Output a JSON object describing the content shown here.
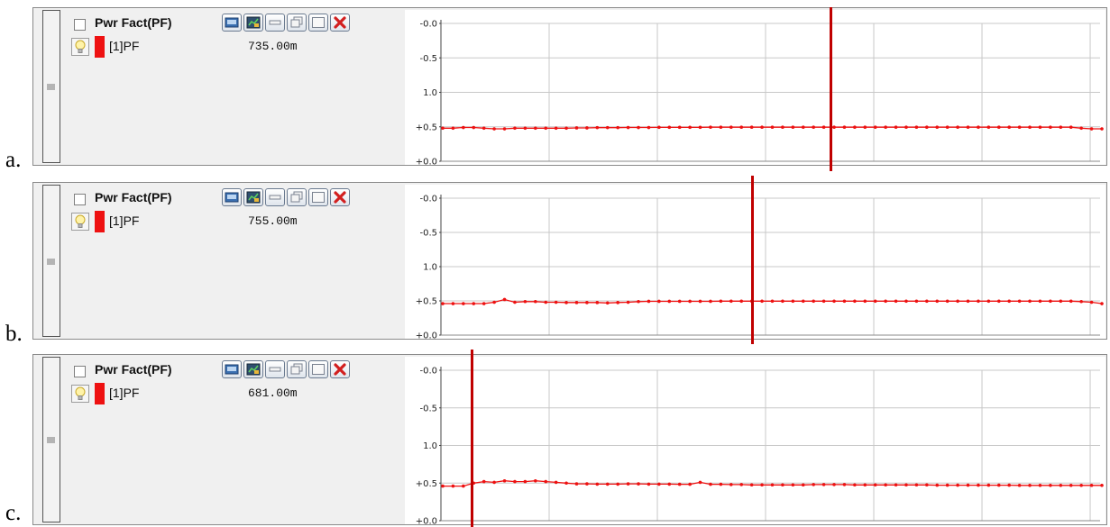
{
  "panels": [
    {
      "label": "a.",
      "title": "Pwr Fact(PF)",
      "series_name": "[1]PF",
      "value": "735.00m"
    },
    {
      "label": "b.",
      "title": "Pwr Fact(PF)",
      "series_name": "[1]PF",
      "value": "755.00m"
    },
    {
      "label": "c.",
      "title": "Pwr Fact(PF)",
      "series_name": "[1]PF",
      "value": "681.00m"
    }
  ],
  "icons": {
    "toolbar": [
      "screen-icon",
      "chart-edit-icon",
      "minimize-icon",
      "restore-icon",
      "maximize-icon",
      "close-icon"
    ],
    "row": [
      "lightbulb-icon",
      "drag-grip-icon"
    ]
  },
  "colors": {
    "series": "#ee1111",
    "cursor": "#c00000",
    "close": "#d21f1f"
  },
  "chart_data": [
    {
      "type": "line",
      "yticks": [
        "-0.0",
        "-0.5",
        "1.0",
        "+0.5",
        "+0.0"
      ],
      "ytick_positions": [
        -0.5,
        -0.25,
        0,
        0.25,
        0.5
      ],
      "ylim": [
        -0.5,
        0.5
      ],
      "grid": true,
      "cursor_fraction": 0.59,
      "series": [
        {
          "color": "#ee1111",
          "values": [
            0.26,
            0.26,
            0.255,
            0.255,
            0.26,
            0.265,
            0.265,
            0.26,
            0.26,
            0.26,
            0.26,
            0.26,
            0.26,
            0.258,
            0.258,
            0.256,
            0.256,
            0.256,
            0.255,
            0.255,
            0.255,
            0.254,
            0.254,
            0.254,
            0.254,
            0.254,
            0.253,
            0.253,
            0.253,
            0.253,
            0.253,
            0.253,
            0.253,
            0.253,
            0.253,
            0.253,
            0.253,
            0.253,
            0.253,
            0.253,
            0.253,
            0.253,
            0.253,
            0.253,
            0.253,
            0.253,
            0.253,
            0.253,
            0.253,
            0.253,
            0.253,
            0.253,
            0.253,
            0.253,
            0.253,
            0.253,
            0.253,
            0.253,
            0.253,
            0.253,
            0.253,
            0.253,
            0.26,
            0.265,
            0.265
          ]
        }
      ]
    },
    {
      "type": "line",
      "yticks": [
        "-0.0",
        "-0.5",
        "1.0",
        "+0.5",
        "+0.0"
      ],
      "ytick_positions": [
        -0.5,
        -0.25,
        0,
        0.25,
        0.5
      ],
      "ylim": [
        -0.5,
        0.5
      ],
      "grid": true,
      "cursor_fraction": 0.47,
      "series": [
        {
          "color": "#ee1111",
          "values": [
            0.27,
            0.27,
            0.27,
            0.27,
            0.27,
            0.26,
            0.24,
            0.26,
            0.255,
            0.255,
            0.26,
            0.26,
            0.262,
            0.262,
            0.262,
            0.262,
            0.265,
            0.262,
            0.26,
            0.255,
            0.253,
            0.253,
            0.253,
            0.253,
            0.253,
            0.253,
            0.253,
            0.252,
            0.252,
            0.252,
            0.252,
            0.252,
            0.252,
            0.252,
            0.252,
            0.252,
            0.252,
            0.252,
            0.252,
            0.252,
            0.252,
            0.252,
            0.252,
            0.252,
            0.252,
            0.252,
            0.252,
            0.252,
            0.252,
            0.252,
            0.252,
            0.252,
            0.252,
            0.252,
            0.252,
            0.252,
            0.252,
            0.252,
            0.252,
            0.252,
            0.252,
            0.252,
            0.255,
            0.26,
            0.27
          ]
        }
      ]
    },
    {
      "type": "line",
      "yticks": [
        "-0.0",
        "-0.5",
        "1.0",
        "+0.5",
        "+0.0"
      ],
      "ytick_positions": [
        -0.5,
        -0.25,
        0,
        0.25,
        0.5
      ],
      "ylim": [
        -0.5,
        0.5
      ],
      "grid": true,
      "cursor_fraction": 0.045,
      "series": [
        {
          "color": "#ee1111",
          "values": [
            0.27,
            0.27,
            0.27,
            0.25,
            0.24,
            0.245,
            0.235,
            0.24,
            0.24,
            0.235,
            0.24,
            0.245,
            0.25,
            0.255,
            0.255,
            0.257,
            0.257,
            0.257,
            0.255,
            0.255,
            0.257,
            0.257,
            0.257,
            0.258,
            0.258,
            0.245,
            0.258,
            0.258,
            0.26,
            0.26,
            0.262,
            0.262,
            0.262,
            0.262,
            0.262,
            0.262,
            0.26,
            0.26,
            0.26,
            0.26,
            0.262,
            0.262,
            0.262,
            0.262,
            0.262,
            0.262,
            0.262,
            0.262,
            0.264,
            0.264,
            0.264,
            0.264,
            0.264,
            0.264,
            0.264,
            0.264,
            0.265,
            0.265,
            0.265,
            0.265,
            0.265,
            0.265,
            0.265,
            0.265,
            0.265
          ]
        }
      ]
    }
  ]
}
